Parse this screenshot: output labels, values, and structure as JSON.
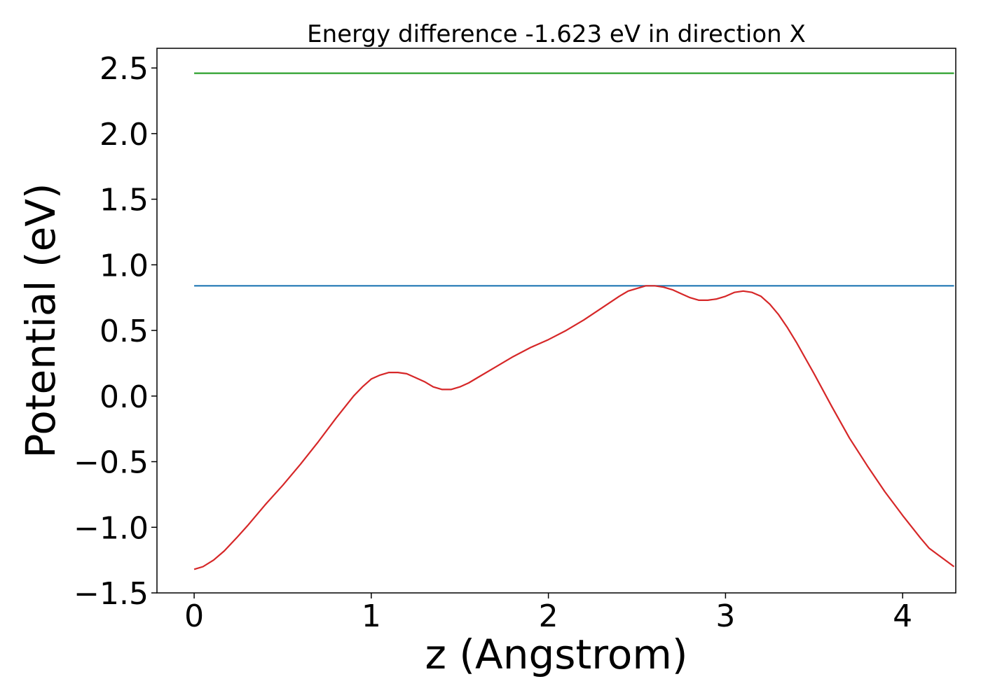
{
  "chart_data": {
    "type": "line",
    "title": "Energy difference -1.623 eV in direction X",
    "xlabel": "z (Angstrom)",
    "ylabel": "Potential (eV)",
    "xlim": [
      -0.21,
      4.3
    ],
    "ylim": [
      -1.5,
      2.65
    ],
    "xticks": [
      0,
      1,
      2,
      3,
      4
    ],
    "yticks": [
      -1.5,
      -1.0,
      -0.5,
      0.0,
      0.5,
      1.0,
      1.5,
      2.0,
      2.5
    ],
    "xtick_labels": [
      "0",
      "1",
      "2",
      "3",
      "4"
    ],
    "ytick_labels": [
      "−1.5",
      "−1.0",
      "−0.5",
      "0.0",
      "0.5",
      "1.0",
      "1.5",
      "2.0",
      "2.5"
    ],
    "grid": false,
    "series": [
      {
        "color": "#2ca02c",
        "x": [
          0.0,
          4.29
        ],
        "y": [
          2.46,
          2.46
        ]
      },
      {
        "color": "#1f77b4",
        "x": [
          0.0,
          4.29
        ],
        "y": [
          0.84,
          0.84
        ]
      },
      {
        "color": "#d62728",
        "x": [
          0.0,
          0.05,
          0.11,
          0.17,
          0.24,
          0.3,
          0.4,
          0.5,
          0.6,
          0.7,
          0.8,
          0.9,
          0.95,
          1.0,
          1.05,
          1.1,
          1.15,
          1.2,
          1.25,
          1.3,
          1.35,
          1.4,
          1.45,
          1.5,
          1.55,
          1.6,
          1.7,
          1.8,
          1.9,
          2.0,
          2.1,
          2.2,
          2.3,
          2.4,
          2.45,
          2.5,
          2.55,
          2.6,
          2.65,
          2.7,
          2.75,
          2.8,
          2.85,
          2.9,
          2.95,
          3.0,
          3.05,
          3.1,
          3.15,
          3.2,
          3.25,
          3.3,
          3.35,
          3.4,
          3.45,
          3.5,
          3.6,
          3.7,
          3.8,
          3.9,
          4.0,
          4.1,
          4.15,
          4.2,
          4.25,
          4.29
        ],
        "y": [
          -1.32,
          -1.3,
          -1.25,
          -1.18,
          -1.08,
          -0.99,
          -0.83,
          -0.68,
          -0.52,
          -0.35,
          -0.17,
          0.0,
          0.07,
          0.13,
          0.16,
          0.18,
          0.18,
          0.17,
          0.14,
          0.11,
          0.07,
          0.05,
          0.05,
          0.07,
          0.1,
          0.14,
          0.22,
          0.3,
          0.37,
          0.43,
          0.5,
          0.58,
          0.67,
          0.76,
          0.8,
          0.82,
          0.84,
          0.84,
          0.83,
          0.81,
          0.78,
          0.75,
          0.73,
          0.73,
          0.74,
          0.76,
          0.79,
          0.8,
          0.79,
          0.76,
          0.7,
          0.62,
          0.52,
          0.41,
          0.29,
          0.17,
          -0.08,
          -0.32,
          -0.53,
          -0.73,
          -0.91,
          -1.08,
          -1.16,
          -1.21,
          -1.26,
          -1.3
        ]
      }
    ]
  }
}
